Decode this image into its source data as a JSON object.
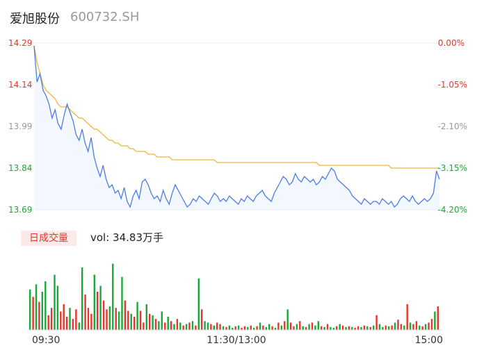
{
  "stock": {
    "name": "爱旭股份",
    "code": "600732.SH"
  },
  "volume": {
    "tab_label": "日成交量",
    "text": "vol: 34.83万手"
  },
  "colors": {
    "up": "#e8352b",
    "down": "#1aa83a",
    "neutral": "#999999",
    "price_line": "#4b7be5",
    "avg_line": "#f3b33a"
  },
  "chart_data": {
    "type": "line",
    "y_ticks": [
      "14.29",
      "14.14",
      "13.99",
      "13.84",
      "13.69"
    ],
    "pct_ticks": [
      "0.00%",
      "-1.05%",
      "-2.10%",
      "-3.15%",
      "-4.20%"
    ],
    "y_tick_colors": [
      "#e8352b",
      "#e8352b",
      "#999999",
      "#1aa83a",
      "#1aa83a"
    ],
    "ylim": [
      13.69,
      14.29
    ],
    "time_labels": [
      "09:30",
      "11:30/13:00",
      "15:00"
    ],
    "series": [
      {
        "values": [
          14.28,
          14.15,
          14.18,
          14.12,
          14.1,
          14.07,
          14.02,
          14.05,
          14.0,
          13.98,
          14.03,
          14.07,
          14.04,
          14.01,
          13.96,
          13.94,
          13.98,
          13.93,
          13.9,
          13.95,
          13.88,
          13.84,
          13.81,
          13.85,
          13.8,
          13.77,
          13.78,
          13.75,
          13.76,
          13.73,
          13.77,
          13.72,
          13.7,
          13.74,
          13.76,
          13.73,
          13.79,
          13.8,
          13.78,
          13.75,
          13.73,
          13.74,
          13.72,
          13.76,
          13.73,
          13.71,
          13.75,
          13.78,
          13.76,
          13.74,
          13.72,
          13.7,
          13.71,
          13.73,
          13.72,
          13.74,
          13.73,
          13.72,
          13.71,
          13.73,
          13.75,
          13.74,
          13.72,
          13.73,
          13.72,
          13.74,
          13.73,
          13.72,
          13.71,
          13.73,
          13.72,
          13.74,
          13.73,
          13.72,
          13.74,
          13.75,
          13.76,
          13.74,
          13.73,
          13.72,
          13.75,
          13.77,
          13.79,
          13.81,
          13.8,
          13.78,
          13.79,
          13.82,
          13.8,
          13.79,
          13.81,
          13.8,
          13.79,
          13.8,
          13.78,
          13.79,
          13.81,
          13.8,
          13.82,
          13.84,
          13.83,
          13.8,
          13.79,
          13.78,
          13.77,
          13.76,
          13.74,
          13.73,
          13.72,
          13.71,
          13.73,
          13.72,
          13.71,
          13.72,
          13.72,
          13.71,
          13.73,
          13.72,
          13.71,
          13.72,
          13.7,
          13.71,
          13.73,
          13.74,
          13.73,
          13.72,
          13.74,
          13.72,
          13.71,
          13.72,
          13.73,
          13.72,
          13.73,
          13.75,
          13.83,
          13.8
        ]
      },
      {
        "values": [
          14.28,
          14.22,
          14.18,
          14.14,
          14.12,
          14.11,
          14.1,
          14.09,
          14.07,
          14.06,
          14.06,
          14.06,
          14.05,
          14.04,
          14.03,
          14.02,
          14.02,
          14.01,
          14.0,
          13.99,
          13.98,
          13.98,
          13.97,
          13.96,
          13.95,
          13.94,
          13.94,
          13.93,
          13.93,
          13.92,
          13.92,
          13.92,
          13.91,
          13.91,
          13.9,
          13.9,
          13.9,
          13.9,
          13.89,
          13.89,
          13.89,
          13.88,
          13.88,
          13.88,
          13.88,
          13.88,
          13.87,
          13.87,
          13.87,
          13.87,
          13.87,
          13.87,
          13.87,
          13.87,
          13.87,
          13.87,
          13.87,
          13.87,
          13.87,
          13.87,
          13.87,
          13.86,
          13.86,
          13.86,
          13.86,
          13.86,
          13.86,
          13.86,
          13.86,
          13.86,
          13.86,
          13.86,
          13.86,
          13.86,
          13.86,
          13.86,
          13.86,
          13.86,
          13.86,
          13.86,
          13.86,
          13.86,
          13.86,
          13.86,
          13.86,
          13.86,
          13.86,
          13.86,
          13.86,
          13.86,
          13.86,
          13.86,
          13.86,
          13.86,
          13.86,
          13.85,
          13.85,
          13.85,
          13.85,
          13.85,
          13.85,
          13.85,
          13.85,
          13.85,
          13.85,
          13.85,
          13.85,
          13.85,
          13.85,
          13.85,
          13.85,
          13.85,
          13.85,
          13.85,
          13.85,
          13.85,
          13.85,
          13.85,
          13.85,
          13.84,
          13.84,
          13.84,
          13.84,
          13.84,
          13.84,
          13.84,
          13.84,
          13.84,
          13.84,
          13.84,
          13.84,
          13.84,
          13.84,
          13.84,
          13.84,
          13.84
        ]
      }
    ],
    "volume_series": [
      {
        "values": [
          0.55,
          0.45,
          0.62,
          0.38,
          0.52,
          0.66,
          0.2,
          0.3,
          0.75,
          0.6,
          0.25,
          0.35,
          0.18,
          0.3,
          0.15,
          0.28,
          0.1,
          0.85,
          0.48,
          0.3,
          0.22,
          0.75,
          0.52,
          0.6,
          0.4,
          0.28,
          0.32,
          0.9,
          0.3,
          0.25,
          0.72,
          0.4,
          0.26,
          0.22,
          0.18,
          0.38,
          0.26,
          0.1,
          0.35,
          0.22,
          0.2,
          0.15,
          0.12,
          0.25,
          0.1,
          0.18,
          0.12,
          0.08,
          0.15,
          0.1,
          0.06,
          0.08,
          0.1,
          0.12,
          0.06,
          0.7,
          0.28,
          0.12,
          0.1,
          0.08,
          0.06,
          0.1,
          0.08,
          0.05,
          0.04,
          0.06,
          0.03,
          0.05,
          0.06,
          0.03,
          0.05,
          0.04,
          0.06,
          0.03,
          0.05,
          0.1,
          0.06,
          0.04,
          0.08,
          0.05,
          0.03,
          0.1,
          0.06,
          0.12,
          0.28,
          0.1,
          0.05,
          0.08,
          0.12,
          0.05,
          0.04,
          0.08,
          0.1,
          0.06,
          0.12,
          0.05,
          0.04,
          0.08,
          0.04,
          0.03,
          0.05,
          0.08,
          0.06,
          0.04,
          0.05,
          0.04,
          0.03,
          0.05,
          0.04,
          0.06,
          0.05,
          0.04,
          0.06,
          0.2,
          0.08,
          0.04,
          0.06,
          0.05,
          0.06,
          0.1,
          0.14,
          0.08,
          0.06,
          0.35,
          0.1,
          0.08,
          0.12,
          0.06,
          0.05,
          0.08,
          0.1,
          0.15,
          0.25,
          0.32
        ]
      }
    ],
    "volume_up": [
      false,
      true,
      false,
      true,
      false,
      false,
      true,
      true,
      false,
      false,
      true,
      true,
      true,
      false,
      true,
      true,
      false,
      false,
      true,
      true,
      true,
      false,
      true,
      false,
      true,
      true,
      false,
      false,
      true,
      false,
      false,
      true,
      true,
      false,
      true,
      false,
      true,
      true,
      false,
      true,
      false,
      true,
      false,
      false,
      true,
      false,
      true,
      false,
      true,
      false,
      true,
      false,
      true,
      false,
      true,
      false,
      true,
      false,
      false,
      true,
      false,
      true,
      true,
      false,
      true,
      false,
      false,
      true,
      false,
      true,
      true,
      false,
      true,
      false,
      true,
      false,
      true,
      false,
      false,
      true,
      false,
      true,
      false,
      true,
      false,
      true,
      true,
      false,
      true,
      false,
      true,
      false,
      true,
      false,
      false,
      true,
      false,
      true,
      false,
      false,
      true,
      false,
      true,
      false,
      true,
      false,
      true,
      true,
      false,
      true,
      false,
      true,
      false,
      true,
      false,
      false,
      true,
      false,
      true,
      false,
      true,
      true,
      false,
      true,
      false,
      true,
      true,
      false,
      true,
      false,
      true,
      true,
      false,
      true,
      false,
      false
    ]
  }
}
